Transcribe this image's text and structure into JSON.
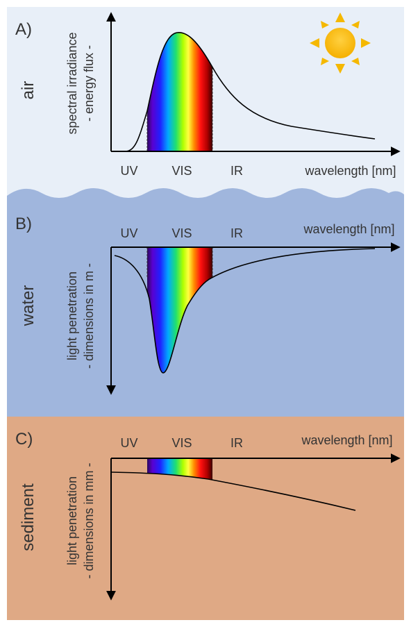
{
  "panels": [
    {
      "letter": "A)",
      "medium": "air",
      "y_axis_label": [
        "spectral irradiance",
        "- energy flux -"
      ],
      "bands": [
        "UV",
        "VIS",
        "IR"
      ],
      "x_axis_label": "wavelength [nm]"
    },
    {
      "letter": "B)",
      "medium": "water",
      "y_axis_label": [
        "light penetration",
        "- dimensions in m -"
      ],
      "bands": [
        "UV",
        "VIS",
        "IR"
      ],
      "x_axis_label": "wavelength [nm]"
    },
    {
      "letter": "C)",
      "medium": "sediment",
      "y_axis_label": [
        "light penetration",
        "- dimensions in mm -"
      ],
      "bands": [
        "UV",
        "VIS",
        "IR"
      ],
      "x_axis_label": "wavelength [nm]"
    }
  ]
}
